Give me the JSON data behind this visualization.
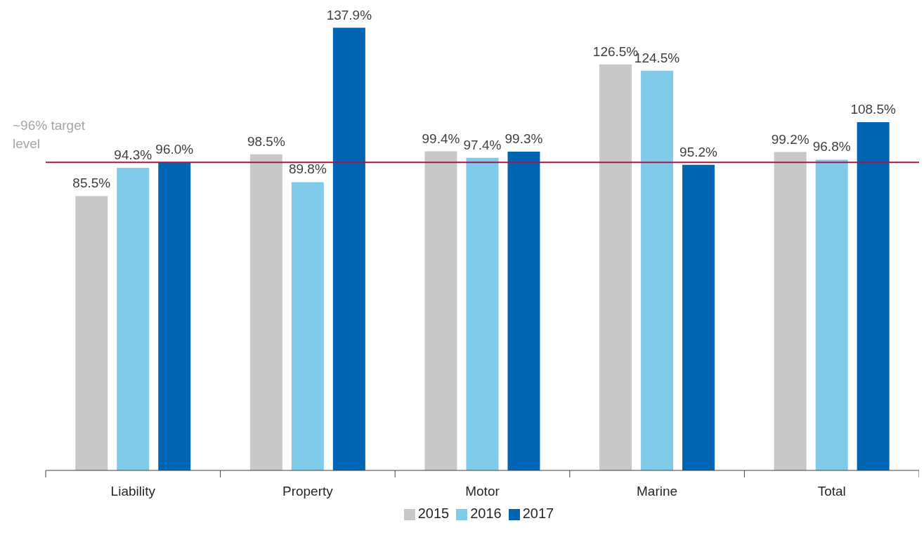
{
  "chart_data": {
    "type": "bar",
    "categories": [
      "Liability",
      "Property",
      "Motor",
      "Marine",
      "Total"
    ],
    "series": [
      {
        "name": "2015",
        "color": "#c8c8c8",
        "values": [
          85.5,
          98.5,
          99.4,
          126.5,
          99.2
        ],
        "value_labels": [
          "85.5%",
          "98.5%",
          "99.4%",
          "126.5%",
          "99.2%"
        ]
      },
      {
        "name": "2016",
        "color": "#80cbe9",
        "values": [
          94.3,
          89.8,
          97.4,
          124.5,
          96.8
        ],
        "value_labels": [
          "94.3%",
          "89.8%",
          "97.4%",
          "124.5%",
          "96.8%"
        ]
      },
      {
        "name": "2017",
        "color": "#0066b3",
        "values": [
          96.0,
          137.9,
          99.3,
          95.2,
          108.5
        ],
        "value_labels": [
          "96.0%",
          "137.9%",
          "99.3%",
          "95.2%",
          "108.5%"
        ]
      }
    ],
    "tick_labels": "x",
    "grid": false,
    "legend": "bottom",
    "ref_lines": [
      {
        "axis": "y",
        "value": 96,
        "label": "~96% target level",
        "color": "#a3174a"
      }
    ]
  }
}
